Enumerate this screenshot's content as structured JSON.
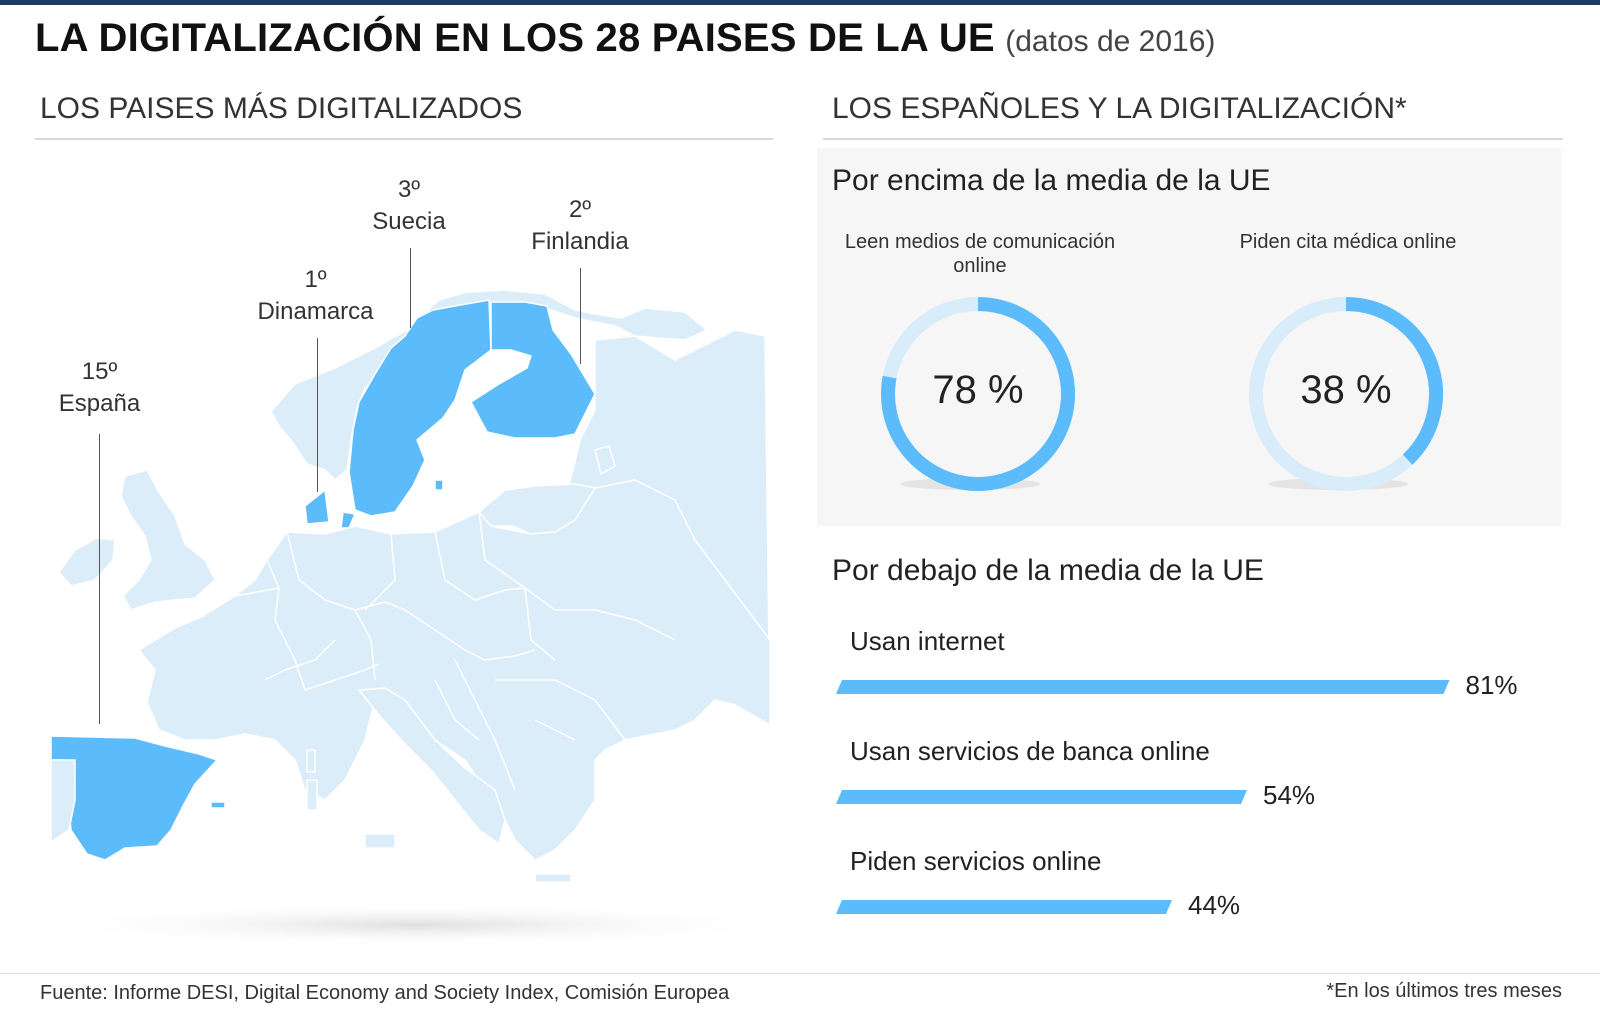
{
  "header": {
    "title": "LA DIGITALIZACIÓN EN LOS 28 PAISES DE LA UE",
    "subtitle": "(datos de 2016)"
  },
  "left": {
    "heading": "LOS PAISES MÁS DIGITALIZADOS",
    "rankings": [
      {
        "rank": "1º",
        "country": "Dinamarca"
      },
      {
        "rank": "2º",
        "country": "Finlandia"
      },
      {
        "rank": "3º",
        "country": "Suecia"
      },
      {
        "rank": "15º",
        "country": "España"
      }
    ]
  },
  "right": {
    "heading": "LOS ESPAÑOLES Y LA DIGITALIZACIÓN*",
    "above": {
      "heading": "Por encima de la media de la UE"
    },
    "below": {
      "heading": "Por debajo de la media de la UE"
    }
  },
  "colors": {
    "highlight": "#5cbcfb",
    "land": "#dcedfa",
    "track": "#d8ecfa",
    "border": "#ffffff"
  },
  "chart_data": [
    {
      "type": "pie",
      "title": "Leen medios de comunicación online",
      "value": 78,
      "label": "78 %"
    },
    {
      "type": "pie",
      "title": "Piden cita médica online",
      "value": 38,
      "label": "38 %"
    },
    {
      "type": "bar",
      "categories": [
        "Usan internet",
        "Usan servicios de banca online",
        "Piden servicios online"
      ],
      "values": [
        81,
        54,
        44
      ],
      "labels": [
        "81%",
        "54%",
        "44%"
      ]
    }
  ],
  "footer": {
    "source": "Fuente: Informe DESI, Digital Economy and Society Index, Comisión Europea",
    "note": "*En los últimos tres meses"
  }
}
